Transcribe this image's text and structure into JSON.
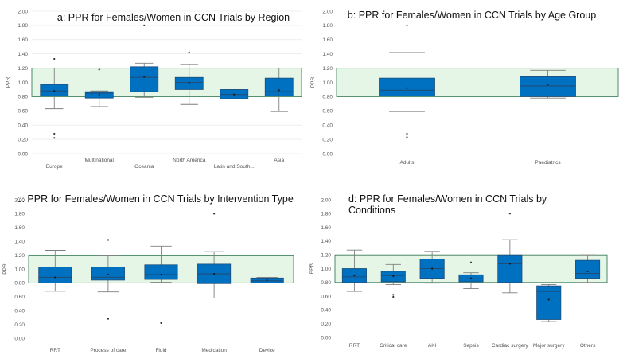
{
  "colors": {
    "box": "#0070C0",
    "box_border": "#1F4E79",
    "band_fill": "#E6F6E6",
    "band_border": "#3A7D5A",
    "grid": "#E5E5E5",
    "whisker": "#7F7F7F",
    "point": "#333333"
  },
  "chart_data": [
    {
      "type": "box",
      "title": "a: PPR for Females/Women in CCN Trials by Region",
      "ylabel": "PPR",
      "ylim": [
        0,
        2
      ],
      "yticks": [
        "0.00",
        "0.20",
        "0.40",
        "0.60",
        "0.80",
        "1.00",
        "1.20",
        "1.40",
        "1.60",
        "1.80",
        "2.00"
      ],
      "band": [
        0.8,
        1.2
      ],
      "grid": true,
      "categories": [
        "Europe",
        "Multinational",
        "Oceania",
        "North America",
        "Latin and South...",
        "Asia"
      ],
      "boxes": [
        {
          "min": 0.63,
          "q1": 0.81,
          "median": 0.88,
          "q3": 0.97,
          "max": 1.2,
          "mean": 0.88,
          "outliers": [
            1.33,
            0.28,
            0.22
          ]
        },
        {
          "min": 0.66,
          "q1": 0.78,
          "median": 0.85,
          "q3": 0.87,
          "max": 0.88,
          "mean": 0.83,
          "outliers": [
            1.18
          ]
        },
        {
          "min": 0.79,
          "q1": 0.87,
          "median": 1.07,
          "q3": 1.22,
          "max": 1.27,
          "mean": 1.08,
          "outliers": [
            1.8
          ]
        },
        {
          "min": 0.69,
          "q1": 0.9,
          "median": 1.0,
          "q3": 1.07,
          "max": 1.25,
          "mean": 0.99,
          "outliers": [
            1.42
          ]
        },
        {
          "min": 0.77,
          "q1": 0.77,
          "median": 0.83,
          "q3": 0.9,
          "max": 0.9,
          "mean": 0.83,
          "outliers": []
        },
        {
          "min": 0.59,
          "q1": 0.81,
          "median": 0.87,
          "q3": 1.06,
          "max": 1.2,
          "mean": 0.89,
          "outliers": []
        }
      ]
    },
    {
      "type": "box",
      "title": "b: PPR for Females/Women in CCN Trials by Age Group",
      "ylabel": "PPR",
      "ylim": [
        0,
        2
      ],
      "yticks": [
        "0.00",
        "0.20",
        "0.40",
        "0.60",
        "0.80",
        "1.00",
        "1.20",
        "1.40",
        "1.60",
        "1.80",
        "2.00"
      ],
      "band": [
        0.8,
        1.2
      ],
      "grid": false,
      "categories": [
        "Adults",
        "Paediatrics"
      ],
      "boxes": [
        {
          "min": 0.59,
          "q1": 0.81,
          "median": 0.89,
          "q3": 1.06,
          "max": 1.42,
          "mean": 0.92,
          "outliers": [
            1.8,
            0.28,
            0.23
          ]
        },
        {
          "min": 0.78,
          "q1": 0.8,
          "median": 0.95,
          "q3": 1.08,
          "max": 1.17,
          "mean": 0.97,
          "outliers": []
        }
      ]
    },
    {
      "type": "box",
      "title": "c: PPR for Females/Women in CCN Trials by Intervention Type",
      "ylabel": "PPR",
      "ylim": [
        0,
        2
      ],
      "yticks": [
        "0.00",
        "0.20",
        "0.40",
        "0.60",
        "0.80",
        "1.00",
        "1.20",
        "1.40",
        "1.60",
        "1.80",
        "2.00"
      ],
      "band": [
        0.8,
        1.2
      ],
      "grid": false,
      "categories": [
        "RRT",
        "Process of care",
        "Fluid",
        "Medication",
        "Device"
      ],
      "boxes": [
        {
          "min": 0.68,
          "q1": 0.8,
          "median": 0.88,
          "q3": 1.03,
          "max": 1.27,
          "mean": 0.88,
          "outliers": []
        },
        {
          "min": 0.67,
          "q1": 0.84,
          "median": 0.88,
          "q3": 1.03,
          "max": 1.2,
          "mean": 0.92,
          "outliers": [
            1.42,
            0.28
          ]
        },
        {
          "min": 0.81,
          "q1": 0.85,
          "median": 0.92,
          "q3": 1.06,
          "max": 1.33,
          "mean": 0.92,
          "outliers": [
            0.22
          ]
        },
        {
          "min": 0.58,
          "q1": 0.79,
          "median": 0.93,
          "q3": 1.07,
          "max": 1.25,
          "mean": 0.93,
          "outliers": [
            1.8
          ]
        },
        {
          "min": 0.8,
          "q1": 0.8,
          "median": 0.83,
          "q3": 0.87,
          "max": 0.88,
          "mean": 0.84,
          "outliers": []
        }
      ]
    },
    {
      "type": "box",
      "title": "d: PPR for Females/Women in CCN Trials by Conditions",
      "ylabel": "PPR",
      "ylim": [
        0,
        2
      ],
      "yticks": [
        "0.00",
        "0.20",
        "0.40",
        "0.60",
        "0.80",
        "1.00",
        "1.20",
        "1.40",
        "1.60",
        "1.80",
        "2.00"
      ],
      "band": [
        0.8,
        1.2
      ],
      "grid": false,
      "categories": [
        "RRT",
        "Critical care",
        "AKI",
        "Sepsis",
        "Cardiac surgery",
        "Major surgery",
        "Others"
      ],
      "boxes": [
        {
          "min": 0.67,
          "q1": 0.8,
          "median": 0.88,
          "q3": 1.0,
          "max": 1.27,
          "mean": 0.9,
          "outliers": []
        },
        {
          "min": 0.77,
          "q1": 0.81,
          "median": 0.9,
          "q3": 0.96,
          "max": 1.06,
          "mean": 0.89,
          "outliers": [
            0.62,
            0.59
          ]
        },
        {
          "min": 0.79,
          "q1": 0.86,
          "median": 1.0,
          "q3": 1.14,
          "max": 1.25,
          "mean": 1.0,
          "outliers": []
        },
        {
          "min": 0.71,
          "q1": 0.81,
          "median": 0.85,
          "q3": 0.91,
          "max": 0.94,
          "mean": 0.86,
          "outliers": [
            1.09
          ]
        },
        {
          "min": 0.65,
          "q1": 0.8,
          "median": 1.07,
          "q3": 1.2,
          "max": 1.42,
          "mean": 1.07,
          "outliers": [
            1.8
          ]
        },
        {
          "min": 0.23,
          "q1": 0.26,
          "median": 0.67,
          "q3": 0.75,
          "max": 0.77,
          "mean": 0.55,
          "outliers": []
        },
        {
          "min": 0.8,
          "q1": 0.86,
          "median": 0.93,
          "q3": 1.12,
          "max": 1.2,
          "mean": 0.96,
          "outliers": []
        }
      ]
    }
  ]
}
